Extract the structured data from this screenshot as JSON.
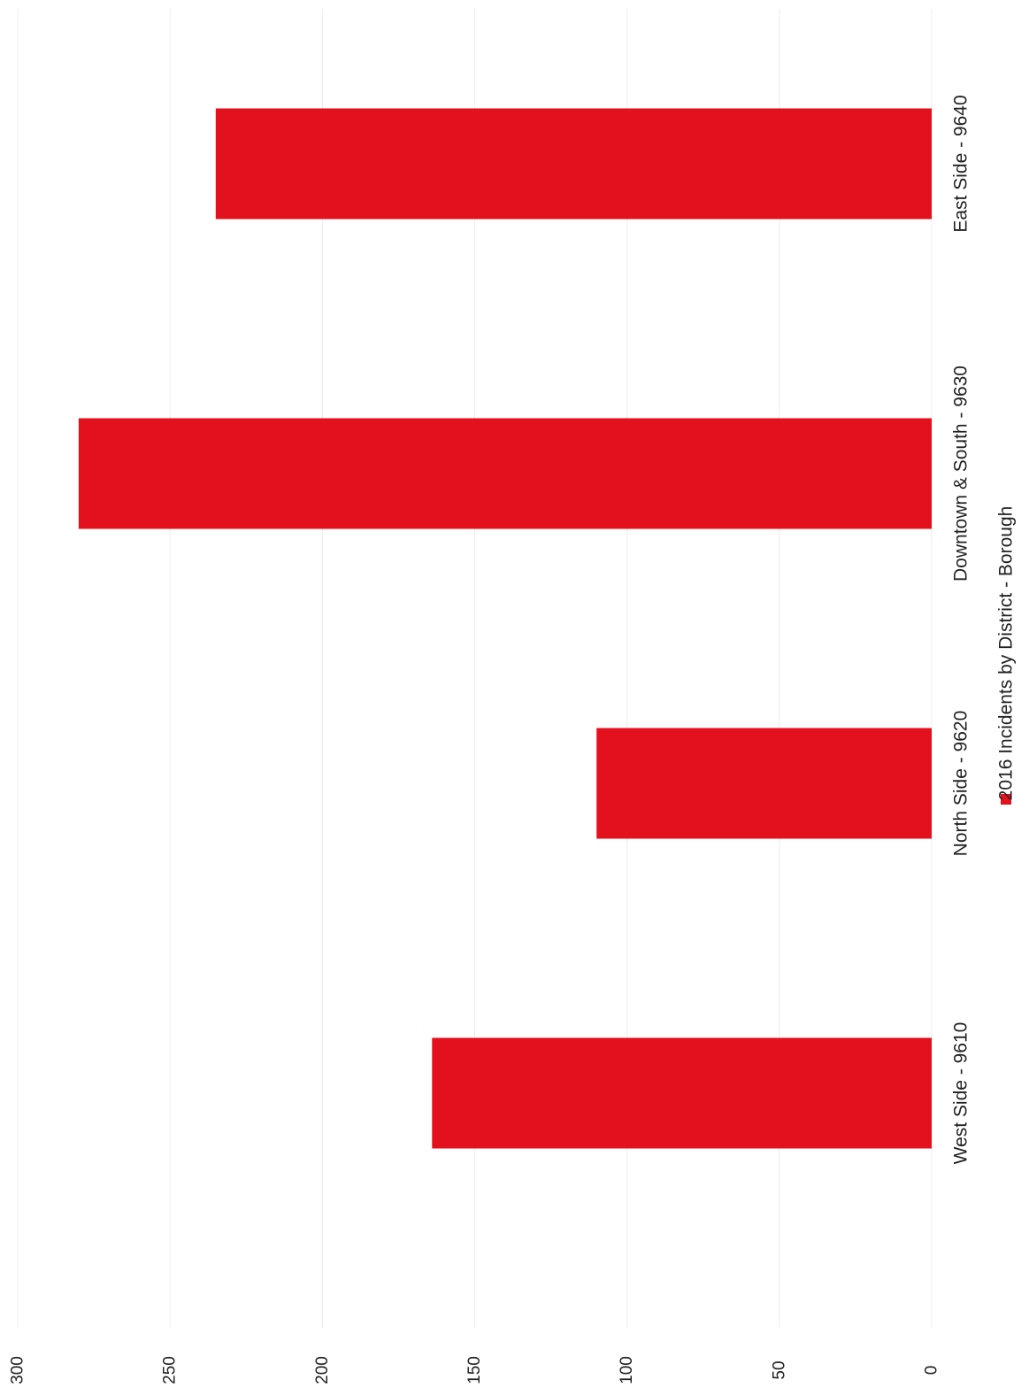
{
  "chart_data": {
    "type": "bar",
    "orientation": "vertical-bars-rotated-page",
    "title": "",
    "xlabel": "",
    "ylabel": "",
    "categories": [
      "West Side - 9610",
      "North Side - 9620",
      "Downtown & South - 9630",
      "East Side - 9640"
    ],
    "series": [
      {
        "name": "2016 Incidents by District - Borough",
        "values": [
          164,
          110,
          280,
          235
        ],
        "color": "#e3101d"
      }
    ],
    "ylim": [
      0,
      300
    ],
    "yticks": [
      "0",
      "50",
      "100",
      "150",
      "200",
      "250",
      "300"
    ],
    "grid": true,
    "legend": "bottom"
  }
}
